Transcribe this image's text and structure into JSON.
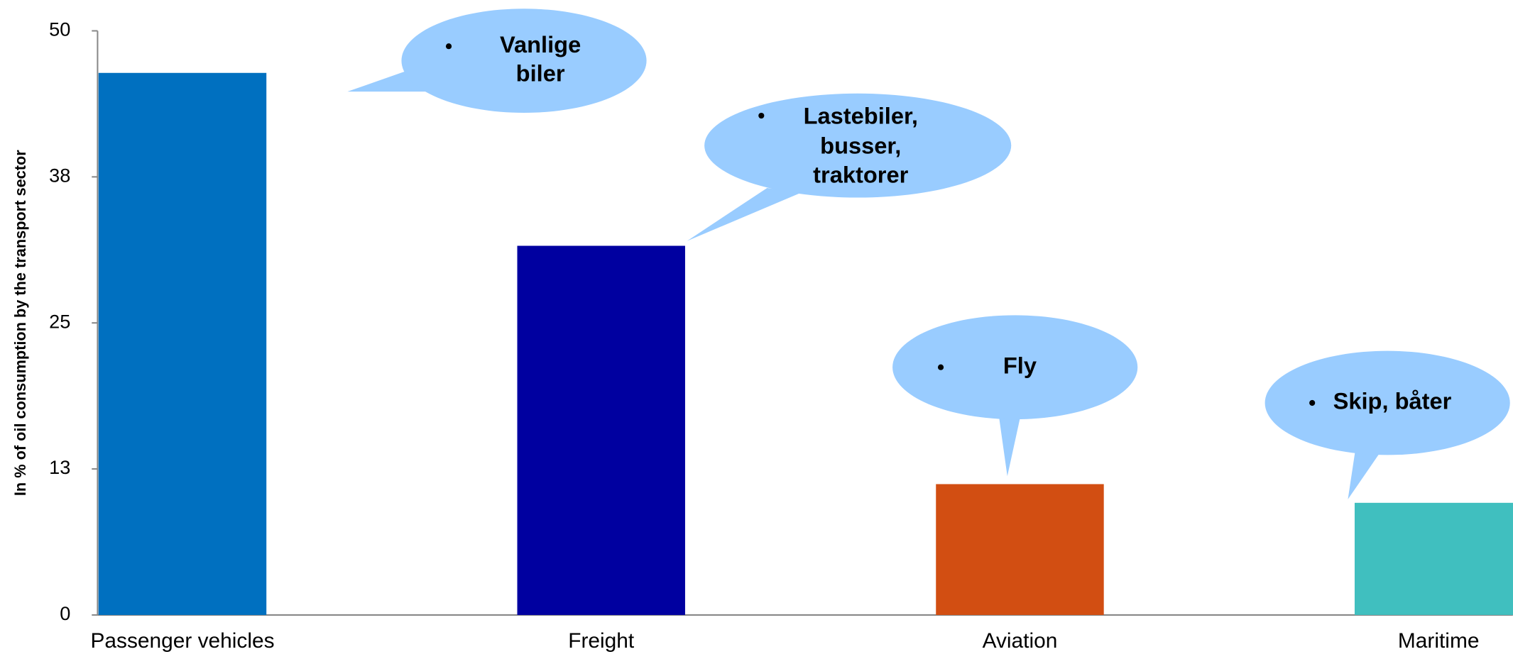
{
  "chart_data": {
    "type": "bar",
    "y_label": "In % of oil consumption by the transport sector",
    "categories": [
      "Passenger vehicles",
      "Freight",
      "Aviation",
      "Maritime"
    ],
    "values": [
      46.4,
      31.6,
      11.2,
      9.6
    ],
    "colors": [
      "#0070c0",
      "#0000a0",
      "#d24e12",
      "#40bfbf"
    ],
    "ylim": [
      0,
      50
    ],
    "yticks": [
      0,
      {
        "value": 12.5,
        "label": "13"
      },
      25,
      {
        "value": 37.5,
        "label": "38"
      },
      50
    ],
    "annotations": [
      {
        "lines": [
          "Vanlige",
          "biler"
        ]
      },
      {
        "lines": [
          "Lastebiler,",
          "busser,",
          "traktorer"
        ]
      },
      {
        "lines": [
          "Fly"
        ]
      },
      {
        "lines": [
          "Skip, båter"
        ]
      }
    ]
  }
}
